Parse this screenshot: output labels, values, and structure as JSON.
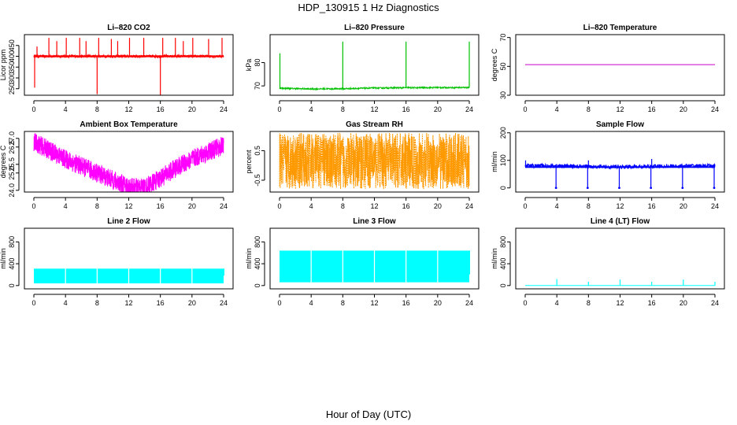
{
  "figure": {
    "title": "HDP_130915  1 Hz Diagnostics",
    "xlabel": "Hour of Day (UTC)"
  },
  "chart_data": [
    {
      "type": "line",
      "title": "Li–820 CO2",
      "ylabel": "Licor ppm",
      "xlim": [
        0,
        24
      ],
      "ylim": [
        220,
        500
      ],
      "xticks": [
        0,
        4,
        8,
        12,
        16,
        20,
        24
      ],
      "yticks": [
        250,
        300,
        350,
        400,
        450
      ],
      "color": "#ff0000",
      "style": "noisy_band_with_spikes",
      "series": [
        {
          "baseline": [
            [
              0,
              400
            ],
            [
              24,
              400
            ]
          ],
          "noise": 12,
          "spikes_up": [
            [
              0.4,
              445
            ],
            [
              1.9,
              485
            ],
            [
              2.9,
              470
            ],
            [
              4.1,
              485
            ],
            [
              5.8,
              485
            ],
            [
              6.6,
              470
            ],
            [
              8.2,
              485
            ],
            [
              9.8,
              480
            ],
            [
              10.6,
              470
            ],
            [
              12.1,
              485
            ],
            [
              13.9,
              485
            ],
            [
              16.3,
              485
            ],
            [
              17.9,
              485
            ],
            [
              18.9,
              470
            ],
            [
              20.1,
              485
            ],
            [
              22.1,
              480
            ],
            [
              23.8,
              485
            ]
          ],
          "spikes_down": [
            [
              0.1,
              255
            ],
            [
              8.0,
              225
            ],
            [
              16.0,
              220
            ]
          ]
        }
      ]
    },
    {
      "type": "line",
      "title": "Li–820 Pressure",
      "ylabel": "kPa",
      "xlim": [
        0,
        24
      ],
      "ylim": [
        66,
        92
      ],
      "xticks": [
        0,
        4,
        8,
        12,
        16,
        20,
        24
      ],
      "yticks": [
        70,
        80
      ],
      "color": "#00c000",
      "style": "line_with_spikes",
      "series": [
        {
          "points": [
            [
              0,
              69
            ],
            [
              4,
              68.7
            ],
            [
              8,
              68.8
            ],
            [
              12,
              69.1
            ],
            [
              16,
              69.2
            ],
            [
              20,
              69.3
            ],
            [
              24,
              69.3
            ]
          ],
          "noise": 0.3,
          "spikes_up": [
            [
              0.05,
              84
            ],
            [
              8.0,
              89
            ],
            [
              16.0,
              89
            ],
            [
              24.0,
              89
            ]
          ]
        }
      ]
    },
    {
      "type": "line",
      "title": "Li–820 Temperature",
      "ylabel": "degrees C",
      "xlim": [
        0,
        24
      ],
      "ylim": [
        30,
        72
      ],
      "xticks": [
        0,
        4,
        8,
        12,
        16,
        20,
        24
      ],
      "yticks": [
        30,
        50,
        70
      ],
      "color": "#cc00cc",
      "style": "flat_line",
      "series": [
        {
          "points": [
            [
              0,
              51.2
            ],
            [
              24,
              51.2
            ]
          ]
        }
      ]
    },
    {
      "type": "line",
      "title": "Ambient Box Temperature",
      "ylabel": "degrees C",
      "xlim": [
        0,
        24
      ],
      "ylim": [
        23.9,
        27.4
      ],
      "xticks": [
        0,
        4,
        8,
        12,
        16,
        20,
        24
      ],
      "yticks": [
        24.0,
        25.0,
        25.5,
        26.5,
        27.0
      ],
      "color": "#ff00ff",
      "style": "thick_noisy_band",
      "series": [
        {
          "points": [
            [
              0,
              26.8
            ],
            [
              2,
              26.3
            ],
            [
              4,
              25.8
            ],
            [
              6,
              25.4
            ],
            [
              8,
              25.0
            ],
            [
              10,
              24.6
            ],
            [
              12,
              24.2
            ],
            [
              14,
              24.15
            ],
            [
              16,
              24.7
            ],
            [
              18,
              25.3
            ],
            [
              20,
              25.8
            ],
            [
              22,
              26.2
            ],
            [
              24,
              26.6
            ]
          ],
          "noise": 0.55
        }
      ]
    },
    {
      "type": "line",
      "title": "Gas Stream RH",
      "ylabel": "percent",
      "xlim": [
        0,
        24
      ],
      "ylim": [
        -0.9,
        1.15
      ],
      "xticks": [
        0,
        4,
        8,
        12,
        16,
        20,
        24
      ],
      "yticks": [
        -0.5,
        0.5
      ],
      "color": "#ff9900",
      "style": "dense_noise",
      "series": [
        {
          "points": [
            [
              0,
              0.15
            ],
            [
              24,
              0.15
            ]
          ],
          "noise": 0.95
        }
      ]
    },
    {
      "type": "line",
      "title": "Sample Flow",
      "ylabel": "ml/min",
      "xlim": [
        0,
        24
      ],
      "ylim": [
        -15,
        205
      ],
      "xticks": [
        0,
        4,
        8,
        12,
        16,
        20,
        24
      ],
      "yticks": [
        0,
        100,
        200
      ],
      "color": "#0000ff",
      "style": "band_with_dips",
      "series": [
        {
          "points": [
            [
              0,
              80
            ],
            [
              4,
              80
            ],
            [
              8,
              78
            ],
            [
              12,
              76
            ],
            [
              16,
              78
            ],
            [
              20,
              80
            ],
            [
              24,
              80
            ]
          ],
          "noise": 7,
          "spikes_up": [
            [
              0.05,
              100
            ],
            [
              8.0,
              100
            ],
            [
              16.0,
              105
            ]
          ],
          "spikes_down": [
            [
              3.9,
              0
            ],
            [
              7.9,
              0
            ],
            [
              11.9,
              0
            ],
            [
              15.9,
              0
            ],
            [
              19.9,
              0
            ],
            [
              23.9,
              0
            ]
          ]
        }
      ]
    },
    {
      "type": "bar",
      "title": "Line 2 Flow",
      "ylabel": "ml/min",
      "xlim": [
        0,
        24
      ],
      "ylim": [
        -60,
        1050
      ],
      "xticks": [
        0,
        4,
        8,
        12,
        16,
        20,
        24
      ],
      "yticks": [
        0,
        400,
        800
      ],
      "color": "#00ffff",
      "style": "solid_block",
      "series": [
        {
          "low": 40,
          "high": 310,
          "gaps": [
            4,
            8,
            12,
            16,
            20
          ]
        }
      ]
    },
    {
      "type": "bar",
      "title": "Line 3 Flow",
      "ylabel": "ml/min",
      "xlim": [
        0,
        24
      ],
      "ylim": [
        -60,
        1050
      ],
      "xticks": [
        0,
        4,
        8,
        12,
        16,
        20,
        24
      ],
      "yticks": [
        0,
        400,
        800
      ],
      "color": "#00ffff",
      "style": "solid_block",
      "series": [
        {
          "low": 60,
          "high": 640,
          "gaps": [
            4,
            8,
            12,
            16,
            20
          ]
        }
      ]
    },
    {
      "type": "line",
      "title": "Line 4 (LT) Flow",
      "ylabel": "ml/min",
      "xlim": [
        0,
        24
      ],
      "ylim": [
        -60,
        1050
      ],
      "xticks": [
        0,
        4,
        8,
        12,
        16,
        20,
        24
      ],
      "yticks": [
        0,
        400,
        800
      ],
      "color": "#00ffff",
      "style": "flat_with_spikes",
      "series": [
        {
          "points": [
            [
              0,
              0
            ],
            [
              24,
              0
            ]
          ],
          "spikes_up": [
            [
              4.0,
              120
            ],
            [
              8.0,
              70
            ],
            [
              12.0,
              110
            ],
            [
              16.0,
              70
            ],
            [
              20.0,
              110
            ],
            [
              24.0,
              70
            ]
          ]
        }
      ]
    }
  ]
}
